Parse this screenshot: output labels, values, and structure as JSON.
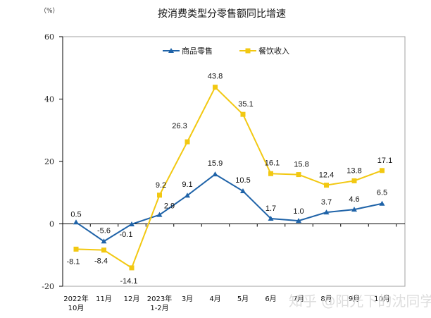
{
  "chart_data": {
    "type": "line",
    "title": "按消费类型分零售额同比增速",
    "unit_label": "（%）",
    "xlabel": "",
    "ylabel": "%",
    "ylim": [
      -20,
      60
    ],
    "yticks": [
      60,
      40,
      20,
      0,
      -20
    ],
    "categories": [
      [
        "2022年",
        "10月"
      ],
      [
        "11月"
      ],
      [
        "12月"
      ],
      [
        "2023年",
        "1-2月"
      ],
      [
        "3月"
      ],
      [
        "4月"
      ],
      [
        "5月"
      ],
      [
        "6月"
      ],
      [
        "7月"
      ],
      [
        "8月"
      ],
      [
        "9月"
      ],
      [
        "10月"
      ]
    ],
    "series": [
      {
        "name": "商品零售",
        "color": "#1f63a8",
        "marker": "triangle",
        "values": [
          0.5,
          -5.6,
          -0.1,
          2.9,
          9.1,
          15.9,
          10.5,
          1.7,
          1.0,
          3.7,
          4.6,
          6.5
        ],
        "labels": [
          "0.5",
          "-5.6",
          "-0.1",
          "2.9",
          "9.1",
          "15.9",
          "10.5",
          "1.7",
          "1.0",
          "3.7",
          "4.6",
          "6.5"
        ]
      },
      {
        "name": "餐饮收入",
        "color": "#f2c811",
        "marker": "square",
        "values": [
          -8.1,
          -8.4,
          -14.1,
          9.2,
          26.3,
          43.8,
          35.1,
          16.1,
          15.8,
          12.4,
          13.8,
          17.1
        ],
        "labels": [
          "-8.1",
          "-8.4",
          "-14.1",
          "9.2",
          "26.3",
          "43.8",
          "35.1",
          "16.1",
          "15.8",
          "12.4",
          "13.8",
          "17.1"
        ]
      }
    ],
    "legend_position": "top-center",
    "grid": false
  },
  "watermark": "知乎 @阳光下的沈同学"
}
